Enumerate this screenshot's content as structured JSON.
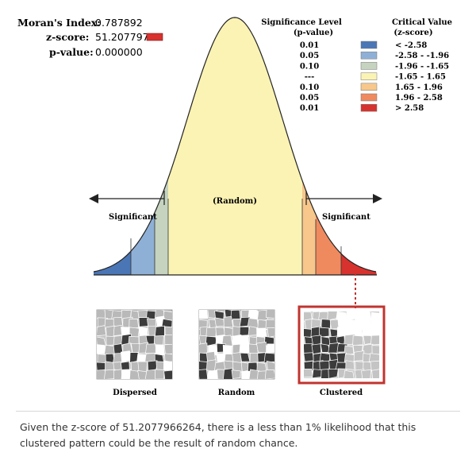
{
  "stats": {
    "morans_index_label": "Moran's Index:",
    "morans_index_value": "0.787892",
    "zscore_label": "z-score:",
    "zscore_value": "51.207797",
    "pvalue_label": "p-value:",
    "pvalue_value": "0.000000",
    "zscore_marker_color": "#d7322e"
  },
  "legend": {
    "sig_header_line1": "Significance Level",
    "sig_header_line2": "(p-value)",
    "crit_header_line1": "Critical Value",
    "crit_header_line2": "(z-score)",
    "rows": [
      {
        "p": "0.01",
        "color": "#4a76b6",
        "range": "< -2.58"
      },
      {
        "p": "0.05",
        "color": "#8fb0d6",
        "range": "-2.58 - -1.96"
      },
      {
        "p": "0.10",
        "color": "#c5d3bf",
        "range": "-1.96 - -1.65"
      },
      {
        "p": "---",
        "color": "#fbf3b4",
        "range": "-1.65 - 1.65"
      },
      {
        "p": "0.10",
        "color": "#f7c78b",
        "range": "1.65 - 1.96"
      },
      {
        "p": "0.05",
        "color": "#ef8a5f",
        "range": "1.96 - 2.58"
      },
      {
        "p": "0.01",
        "color": "#d7322e",
        "range": "> 2.58"
      }
    ]
  },
  "curve": {
    "left_label": "Significant",
    "center_label": "(Random)",
    "right_label": "Significant"
  },
  "patterns": {
    "dispersed": "Dispersed",
    "random": "Random",
    "clustered": "Clustered",
    "highlight_color": "#c0342f"
  },
  "caption": "Given the z-score of 51.2077966264, there is a less than 1% likelihood that this clustered pattern could be the result of random chance."
}
